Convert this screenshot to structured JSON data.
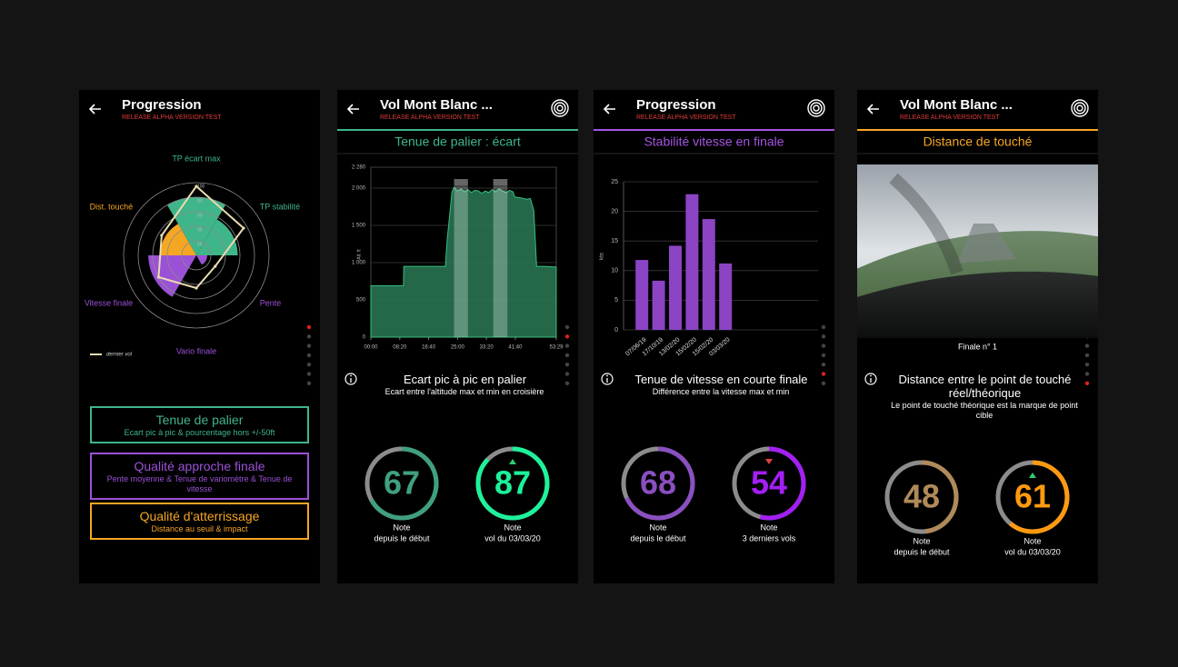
{
  "screens": [
    {
      "title": "Progression",
      "subtitle": "RELEASE ALPHA VERSION TEST",
      "active_page": 0,
      "chart_data": {
        "type": "polar",
        "rlim": [
          0,
          100
        ],
        "rticks": [
          20,
          40,
          60,
          80,
          100
        ],
        "categories": [
          "TP écart max",
          "TP stabilité",
          "Pente",
          "Vario finale",
          "Vitesse finale",
          "Dist. touché"
        ],
        "colors": [
          "#3fb58a",
          "#3fb58a",
          "#9b51d6",
          "#9b51d6",
          "#9b51d6",
          "#f5a623"
        ],
        "values": [
          80,
          57,
          15,
          0,
          66,
          50
        ],
        "series": [
          {
            "name": "dernier vol",
            "color": "#e9dcb0",
            "values": [
              95,
              75,
              30,
              45,
              60,
              55
            ]
          }
        ]
      },
      "buttons": [
        {
          "title": "Tenue de palier",
          "text": "Ecart pic à pic & pourcentage hors +/-50ft",
          "color": "#3fb58a"
        },
        {
          "title": "Qualité approche finale",
          "text": "Pente moyenne & Tenue de variomètre & Tenue de vitesse",
          "color": "#9b51d6"
        },
        {
          "title": "Qualité d'atterrissage",
          "text": "Distance au seuil & impact",
          "color": "#f5a623"
        }
      ]
    },
    {
      "title": "Vol Mont Blanc ...",
      "subtitle": "RELEASE ALPHA VERSION TEST",
      "target_icon": true,
      "active_page": 1,
      "section": {
        "title": "Tenue de palier : écart",
        "color": "#3fb58a"
      },
      "chart_data": {
        "type": "area",
        "y_label": "Alt. ft",
        "color": "#2a7a56",
        "x": [
          0,
          9.4,
          9.5,
          21.5,
          22,
          23.4,
          24,
          25,
          26,
          27,
          28,
          29,
          30,
          31,
          32,
          33,
          34,
          35,
          36,
          37,
          38,
          39,
          40,
          41,
          41.5,
          43,
          45,
          46,
          47,
          47.8,
          50,
          53.48
        ],
        "values": [
          690,
          690,
          950,
          950,
          1300,
          1950,
          2010,
          1960,
          1990,
          1950,
          1980,
          1940,
          1970,
          1960,
          1930,
          1960,
          1940,
          1980,
          1950,
          1990,
          1960,
          1940,
          1970,
          1950,
          1880,
          1870,
          1850,
          1860,
          1700,
          950,
          950,
          940
        ],
        "xlim": [
          0,
          53.48
        ],
        "xticks": [
          {
            "value": 0,
            "label": "00:00"
          },
          {
            "value": 8.333,
            "label": "08:20"
          },
          {
            "value": 16.667,
            "label": "16:40"
          },
          {
            "value": 25,
            "label": "25:00"
          },
          {
            "value": 33.333,
            "label": "33:20"
          },
          {
            "value": 41.667,
            "label": "41:40"
          },
          {
            "value": 53.48,
            "label": "53:29"
          }
        ],
        "ylim": [
          0,
          2280
        ],
        "yticks": [
          0,
          500,
          {
            "value": 1000,
            "label": "1 000"
          },
          {
            "value": 1500,
            "label": "1 500"
          },
          {
            "value": 2000,
            "label": "2 000"
          },
          {
            "value": 2280,
            "label": "2 280"
          }
        ],
        "highlights": [
          [
            24,
            28
          ],
          [
            35.3,
            39.4
          ]
        ]
      },
      "info": {
        "title": "Ecart pic à pic en palier",
        "text": "Ecart entre l'altitude max et min en croisière"
      },
      "gauges": [
        {
          "value": 67,
          "color": "#3fa07e",
          "label": "Note",
          "caption": "depuis le début"
        },
        {
          "value": 87,
          "color": "#1df29a",
          "trend": "up",
          "label": "Note",
          "caption": "vol du 03/03/20"
        }
      ]
    },
    {
      "title": "Progression",
      "subtitle": "RELEASE ALPHA VERSION TEST",
      "target_icon": true,
      "active_page": 5,
      "section": {
        "title": "Stabilité vitesse en finale",
        "color": "#a455e0"
      },
      "chart_data": {
        "type": "bar",
        "y_label": "kts",
        "color": "#8a44c4",
        "categories": [
          "07/06/19",
          "17/10/19",
          "13/02/20",
          "15/02/20",
          "15/02/20",
          "03/03/20"
        ],
        "values": [
          11.8,
          8.3,
          14.2,
          22.9,
          18.7,
          11.2
        ],
        "ylim": [
          0,
          25
        ],
        "yticks": [
          0,
          5,
          10,
          15,
          20,
          25
        ]
      },
      "info": {
        "title": "Tenue de vitesse en courte finale",
        "text": "Différence entre la vitesse max et min"
      },
      "gauges": [
        {
          "value": 68,
          "color": "#8a4fc0",
          "label": "Note",
          "caption": "depuis le début"
        },
        {
          "value": 54,
          "color": "#a31ff5",
          "trend": "down",
          "label": "Note",
          "caption": "3 derniers vols"
        }
      ]
    },
    {
      "title": "Vol Mont Blanc ...",
      "subtitle": "RELEASE ALPHA VERSION TEST",
      "target_icon": true,
      "active_page": 6,
      "section": {
        "title": "Distance de touché",
        "color": "#f5a623"
      },
      "photo_caption": "Finale n° 1",
      "info": {
        "title": "Distance entre le point de touché réel/théorique",
        "text": "Le point de touché théorique est la marque de point cible"
      },
      "gauges": [
        {
          "value": 48,
          "color": "#b08a5a",
          "label": "Note",
          "caption": "depuis le début"
        },
        {
          "value": 61,
          "color": "#ff9a10",
          "trend": "up",
          "label": "Note",
          "caption": "vol du 03/03/20"
        }
      ]
    }
  ]
}
